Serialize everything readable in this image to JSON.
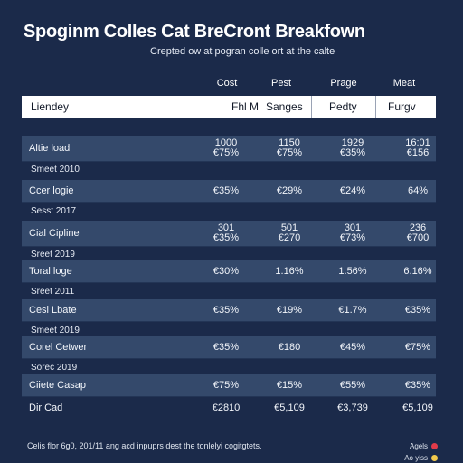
{
  "title": "Spoginm Colles Cat BreCront Breakfown",
  "subtitle": "Crepted ow at pogran colle ort at the calte",
  "column_top_labels": [
    "Cost",
    "Pest",
    "Prage",
    "Meat"
  ],
  "header": {
    "label": "Liendey",
    "columns": [
      "Fhl M",
      "Sanges",
      "Pedty",
      "Furgv"
    ]
  },
  "rows": [
    {
      "type": "data",
      "label": "Altie load",
      "cells": [
        [
          "1000",
          "€75%"
        ],
        [
          "1150",
          "€75%"
        ],
        [
          "1929",
          "€35%"
        ],
        [
          "16:01",
          "€156"
        ]
      ]
    },
    {
      "type": "plain",
      "label": "Smeet 2010"
    },
    {
      "type": "data",
      "label": "Ccer logie",
      "cells": [
        [
          "€35%"
        ],
        [
          "€29%"
        ],
        [
          "€24%"
        ],
        [
          "64%"
        ]
      ]
    },
    {
      "type": "plain",
      "label": "Sesst 2017"
    },
    {
      "type": "data",
      "label": "Cial Cipline",
      "cells": [
        [
          "301",
          "€35%"
        ],
        [
          "501",
          "€270"
        ],
        [
          "301",
          "€73%"
        ],
        [
          "236",
          "€700"
        ]
      ]
    },
    {
      "type": "plain",
      "label": "Sreet 2019"
    },
    {
      "type": "data",
      "label": "Toral loge",
      "cells": [
        [
          "€30%"
        ],
        [
          "1.16%"
        ],
        [
          "1.56%"
        ],
        [
          "6.16%"
        ]
      ]
    },
    {
      "type": "plain",
      "label": "Sreet 2011"
    },
    {
      "type": "data",
      "label": "Cesl Lbate",
      "cells": [
        [
          "€35%"
        ],
        [
          "€19%"
        ],
        [
          "€1.7%"
        ],
        [
          "€35%"
        ]
      ]
    },
    {
      "type": "plain",
      "label": "Smeet 2019"
    },
    {
      "type": "data",
      "label": "Corel Cetwer",
      "cells": [
        [
          "€35%"
        ],
        [
          "€180"
        ],
        [
          "€45%"
        ],
        [
          "€75%"
        ]
      ]
    },
    {
      "type": "plain",
      "label": "Sorec 2019"
    },
    {
      "type": "data",
      "label": "Ciiete Casap",
      "cells": [
        [
          "€75%"
        ],
        [
          "€15%"
        ],
        [
          "€55%"
        ],
        [
          "€35%"
        ]
      ]
    }
  ],
  "footer": {
    "label": "Dir Cad",
    "cells": [
      "€2810",
      "€5,109",
      "€3,739",
      "€5,109"
    ]
  },
  "footnote": "Celis flor 6g0, 201/11 ang acd inpuprs dest the tonlelyi cogitgtets.",
  "legend": [
    {
      "label": "Agels",
      "color": "#e23b4a"
    },
    {
      "label": "Ao yiss",
      "color": "#f2c94c"
    }
  ]
}
